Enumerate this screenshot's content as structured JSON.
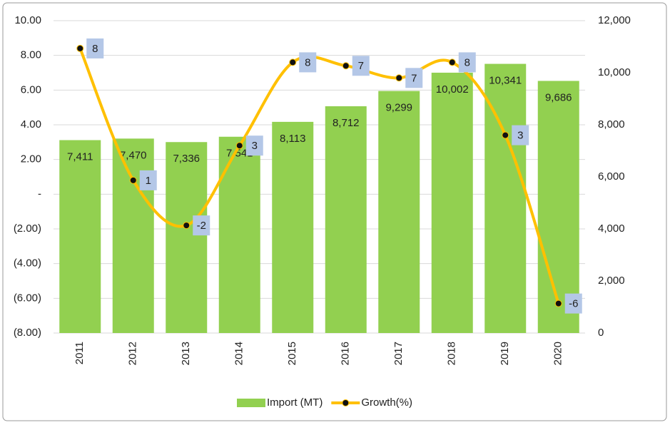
{
  "chart_data": {
    "type": "combo",
    "categories": [
      "2011",
      "2012",
      "2013",
      "2014",
      "2015",
      "2016",
      "2017",
      "2018",
      "2019",
      "2020"
    ],
    "series": [
      {
        "name": "Import (MT)",
        "type": "bar",
        "axis": "y2",
        "color": "#92d050",
        "values": [
          7411,
          7470,
          7336,
          7541,
          8113,
          8712,
          9299,
          10002,
          10341,
          9686
        ],
        "value_labels": [
          "7,411",
          "7,470",
          "7,336",
          "7,541",
          "8,113",
          "8,712",
          "9,299",
          "10,002",
          "10,341",
          "9,686"
        ]
      },
      {
        "name": "Growth(%)",
        "type": "line",
        "axis": "y",
        "color": "#ffc000",
        "values": [
          8.4,
          0.8,
          -1.8,
          2.8,
          7.6,
          7.4,
          6.7,
          7.6,
          3.4,
          -6.3
        ],
        "value_labels": [
          "8",
          "1",
          "-2",
          "3",
          "8",
          "7",
          "7",
          "8",
          "3",
          "-6"
        ]
      }
    ],
    "ylim": [
      -8,
      10
    ],
    "yticks": [
      {
        "value": 10,
        "label": "10.00"
      },
      {
        "value": 8,
        "label": "8.00"
      },
      {
        "value": 6,
        "label": "6.00"
      },
      {
        "value": 4,
        "label": "4.00"
      },
      {
        "value": 2,
        "label": "2.00"
      },
      {
        "value": 0,
        "label": "-"
      },
      {
        "value": -2,
        "label": "(2.00)"
      },
      {
        "value": -4,
        "label": "(4.00)"
      },
      {
        "value": -6,
        "label": "(6.00)"
      },
      {
        "value": -8,
        "label": "(8.00)"
      }
    ],
    "y2lim": [
      0,
      12000
    ],
    "y2ticks": [
      0,
      {
        "value": 2000,
        "label": "2,000"
      },
      {
        "value": 4000,
        "label": "4,000"
      },
      {
        "value": 6000,
        "label": "6,000"
      },
      {
        "value": 8000,
        "label": "8,000"
      },
      {
        "value": 10000,
        "label": "10,000"
      },
      {
        "value": 12000,
        "label": "12,000"
      }
    ],
    "grid": true,
    "legend": "bottom"
  }
}
